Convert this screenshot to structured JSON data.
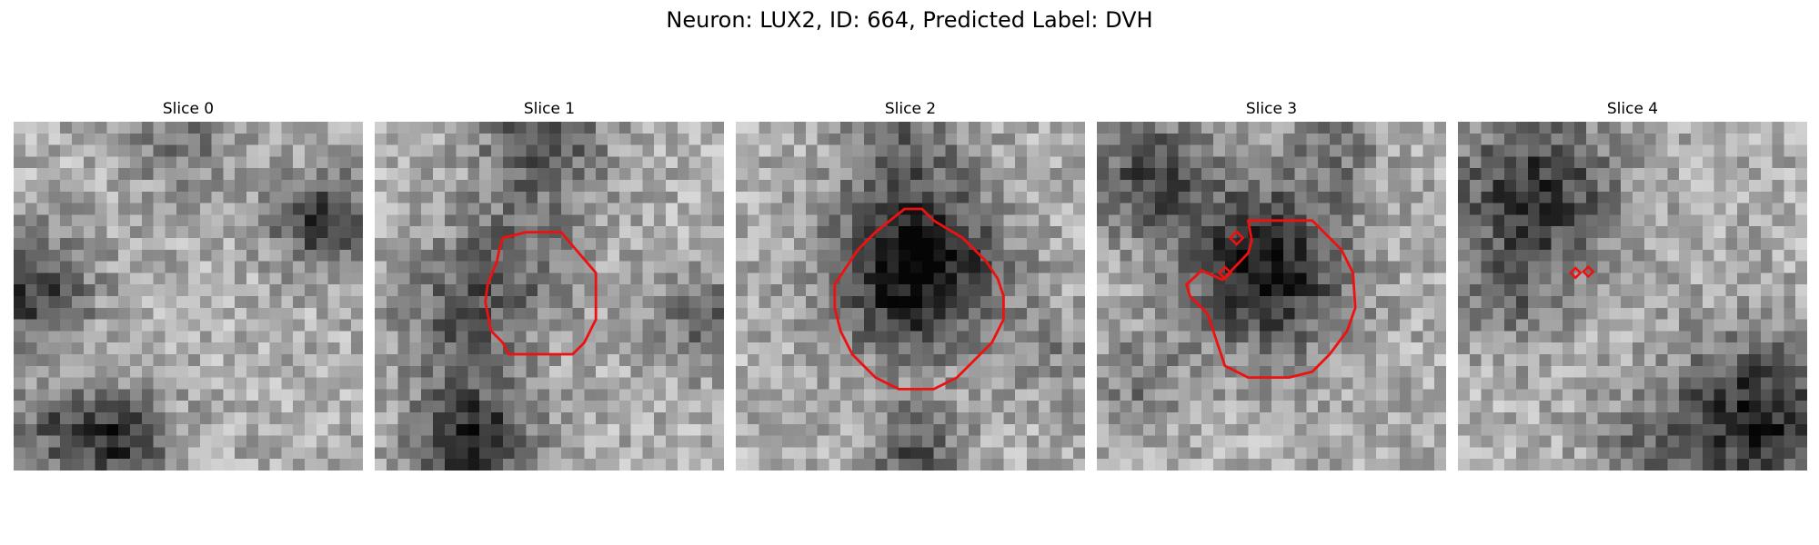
{
  "figure": {
    "title": "Neuron: LUX2, ID: 664, Predicted Label: DVH",
    "panels": [
      {
        "title": "Slice 0"
      },
      {
        "title": "Slice 1"
      },
      {
        "title": "Slice 2"
      },
      {
        "title": "Slice 3"
      },
      {
        "title": "Slice 4"
      }
    ],
    "contour_color": "#ee1111"
  }
}
